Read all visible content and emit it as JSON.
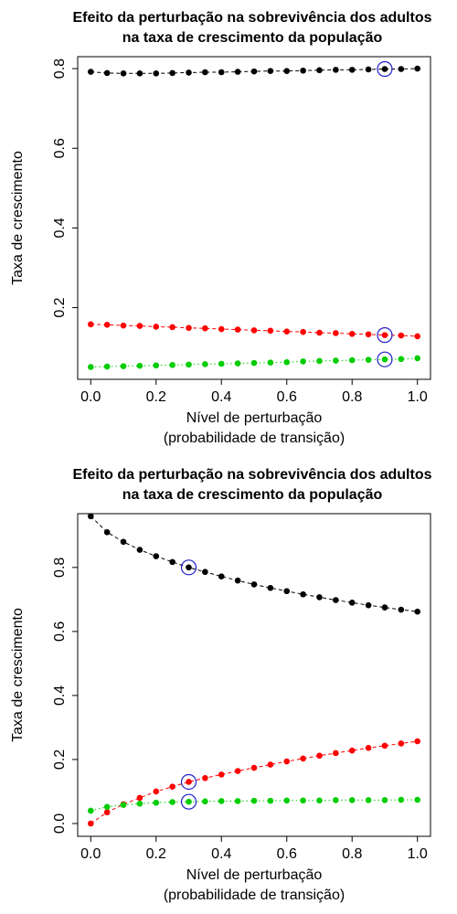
{
  "chart_data": [
    {
      "type": "scatter-line",
      "title": [
        "Efeito da perturbação na sobrevivência dos adultos",
        "na taxa de crescimento da população"
      ],
      "xlabel": [
        "Nível de perturbação",
        "(probabilidade de transição)"
      ],
      "ylabel": "Taxa de crescimento",
      "x": [
        0,
        0.05,
        0.1,
        0.15,
        0.2,
        0.25,
        0.3,
        0.35,
        0.4,
        0.45,
        0.5,
        0.55,
        0.6,
        0.65,
        0.7,
        0.75,
        0.8,
        0.85,
        0.9,
        0.95,
        1
      ],
      "series": [
        {
          "color": "#000000",
          "line_style": "dashed",
          "values": [
            0.792,
            0.789,
            0.788,
            0.788,
            0.788,
            0.789,
            0.79,
            0.791,
            0.791,
            0.792,
            0.793,
            0.794,
            0.794,
            0.795,
            0.796,
            0.797,
            0.797,
            0.798,
            0.799,
            0.799,
            0.8
          ]
        },
        {
          "color": "#ff0000",
          "line_style": "dashed",
          "values": [
            0.158,
            0.157,
            0.155,
            0.154,
            0.152,
            0.151,
            0.149,
            0.148,
            0.146,
            0.145,
            0.143,
            0.142,
            0.14,
            0.139,
            0.137,
            0.136,
            0.134,
            0.133,
            0.131,
            0.13,
            0.128
          ]
        },
        {
          "color": "#00cd00",
          "line_style": "dotted",
          "values": [
            0.051,
            0.052,
            0.053,
            0.054,
            0.055,
            0.056,
            0.057,
            0.058,
            0.059,
            0.06,
            0.061,
            0.062,
            0.063,
            0.065,
            0.066,
            0.067,
            0.068,
            0.069,
            0.07,
            0.071,
            0.073
          ]
        }
      ],
      "highlight_x": 0.9,
      "highlight_color": "#2020cc",
      "xlim": [
        -0.04,
        1.04
      ],
      "ylim": [
        0.02,
        0.83
      ],
      "xticks": [
        {
          "value": 0,
          "label": "0.0"
        },
        0.2,
        0.4,
        0.6,
        0.8,
        {
          "value": 1,
          "label": "1.0"
        }
      ],
      "yticks": [
        0.2,
        0.4,
        0.6,
        0.8
      ]
    },
    {
      "type": "scatter-line",
      "title": [
        "Efeito da perturbação na sobrevivência dos adultos",
        "na taxa de crescimento da população"
      ],
      "xlabel": [
        "Nível de perturbação",
        "(probabilidade de transição)"
      ],
      "ylabel": "Taxa de crescimento",
      "x": [
        0,
        0.05,
        0.1,
        0.15,
        0.2,
        0.25,
        0.3,
        0.35,
        0.4,
        0.45,
        0.5,
        0.55,
        0.6,
        0.65,
        0.7,
        0.75,
        0.8,
        0.85,
        0.9,
        0.95,
        1
      ],
      "series": [
        {
          "color": "#000000",
          "line_style": "dashed",
          "values": [
            0.96,
            0.91,
            0.88,
            0.855,
            0.835,
            0.817,
            0.8,
            0.786,
            0.772,
            0.759,
            0.747,
            0.736,
            0.726,
            0.716,
            0.707,
            0.698,
            0.69,
            0.682,
            0.675,
            0.668,
            0.662
          ]
        },
        {
          "color": "#ff0000",
          "line_style": "dashed",
          "values": [
            0,
            0.035,
            0.06,
            0.08,
            0.1,
            0.115,
            0.13,
            0.142,
            0.153,
            0.164,
            0.174,
            0.184,
            0.194,
            0.203,
            0.212,
            0.22,
            0.228,
            0.236,
            0.243,
            0.25,
            0.257
          ]
        },
        {
          "color": "#00cd00",
          "line_style": "dotted",
          "values": [
            0.04,
            0.052,
            0.058,
            0.062,
            0.065,
            0.067,
            0.068,
            0.069,
            0.07,
            0.07,
            0.071,
            0.071,
            0.072,
            0.072,
            0.072,
            0.073,
            0.073,
            0.073,
            0.073,
            0.074,
            0.074
          ]
        }
      ],
      "highlight_x": 0.3,
      "highlight_color": "#2020cc",
      "xlim": [
        -0.04,
        1.04
      ],
      "ylim": [
        -0.04,
        0.968
      ],
      "xticks": [
        {
          "value": 0,
          "label": "0.0"
        },
        0.2,
        0.4,
        0.6,
        0.8,
        {
          "value": 1,
          "label": "1.0"
        }
      ],
      "yticks": [
        {
          "value": 0,
          "label": "0.0"
        },
        0.2,
        0.4,
        0.6,
        0.8
      ]
    }
  ]
}
